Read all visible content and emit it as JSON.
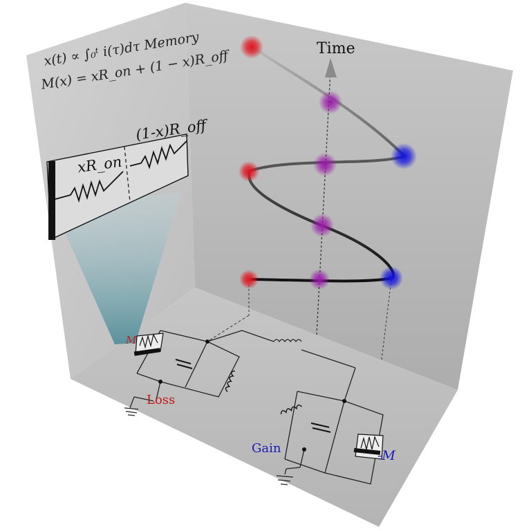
{
  "equations": {
    "memory_integral": "x(t) ∝ ∫₀ᵗ i(τ)dτ  Memory",
    "memristance": "M(x) = xR_on + (1 − x)R_off"
  },
  "memristor_box": {
    "left_resistor": "xR_on",
    "right_resistor": "(1-x)R_off"
  },
  "time_axis": {
    "label": "Time"
  },
  "circuit": {
    "memristor_loss": "M",
    "loss": "Loss",
    "gain": "Gain",
    "memristor_gain": "-M"
  },
  "colors": {
    "loss_red": "#e0141e",
    "gain_blue": "#1414e0",
    "mixed_purple": "#9a1aa8"
  }
}
